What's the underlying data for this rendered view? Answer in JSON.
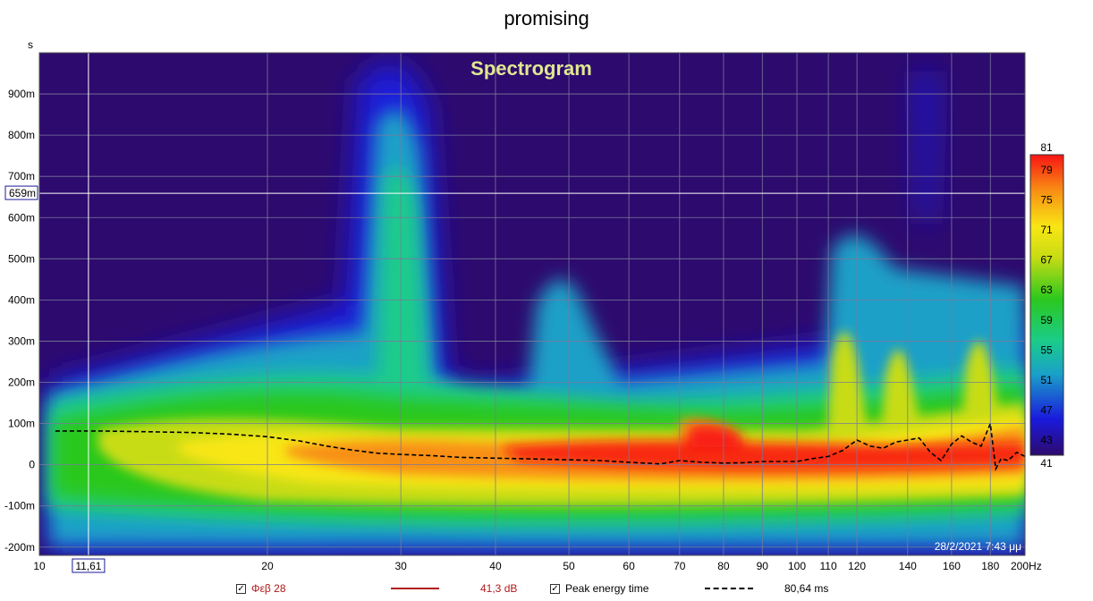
{
  "page_title": "promising",
  "chart_data": {
    "type": "heatmap",
    "title": "Spectrogram",
    "xscale": "log",
    "x_ticks": [
      10,
      20,
      30,
      40,
      50,
      60,
      70,
      80,
      90,
      100,
      110,
      120,
      140,
      160,
      180,
      200
    ],
    "x_tick_labels": [
      "10",
      "20",
      "30",
      "40",
      "50",
      "60",
      "70",
      "80",
      "90",
      "100",
      "110",
      "120",
      "140",
      "160",
      "180",
      "200Hz"
    ],
    "xlim": [
      10,
      200
    ],
    "y_unit": "s",
    "y_ticks": [
      -0.2,
      -0.1,
      0,
      0.1,
      0.2,
      0.3,
      0.4,
      0.5,
      0.6,
      0.7,
      0.8,
      0.9
    ],
    "y_tick_labels": [
      "-200m",
      "-100m",
      "0",
      "100m",
      "200m",
      "300m",
      "400m",
      "500m",
      "600m",
      "700m",
      "800m",
      "900m"
    ],
    "ylim": [
      -0.22,
      1.0
    ],
    "colorbar": {
      "min": 41,
      "max": 81,
      "ticks": [
        43,
        47,
        51,
        55,
        59,
        63,
        67,
        71,
        75,
        79
      ],
      "colors": [
        "#2d0a6e",
        "#1a1adc",
        "#1aa0c8",
        "#1acc8a",
        "#2cc81e",
        "#c8dc14",
        "#f8e614",
        "#f89014",
        "#f81414"
      ]
    },
    "cursor": {
      "x": 11.61,
      "x_label": "11,61",
      "y": 0.659,
      "y_label": "659m"
    },
    "timestamp": "28/2/2021 7:43 μμ",
    "peak_energy_time": {
      "name": "Peak energy time",
      "x": [
        10.5,
        12,
        14,
        16,
        18,
        20,
        22,
        24,
        26,
        28,
        30,
        33,
        36,
        40,
        45,
        50,
        55,
        60,
        63,
        66,
        70,
        75,
        80,
        85,
        90,
        95,
        100,
        105,
        110,
        115,
        120,
        125,
        130,
        135,
        140,
        145,
        150,
        155,
        160,
        165,
        170,
        175,
        180,
        183,
        186,
        190,
        195,
        200
      ],
      "y": [
        0.082,
        0.082,
        0.08,
        0.078,
        0.074,
        0.068,
        0.058,
        0.045,
        0.035,
        0.028,
        0.025,
        0.022,
        0.018,
        0.016,
        0.014,
        0.012,
        0.01,
        0.006,
        0.004,
        0.002,
        0.01,
        0.006,
        0.004,
        0.005,
        0.008,
        0.008,
        0.008,
        0.015,
        0.02,
        0.035,
        0.06,
        0.045,
        0.04,
        0.055,
        0.06,
        0.065,
        0.03,
        0.01,
        0.05,
        0.07,
        0.055,
        0.045,
        0.1,
        -0.01,
        0.015,
        0.01,
        0.03,
        0.02
      ]
    }
  },
  "legend": {
    "item1": {
      "label": "Φεβ 28",
      "value": "41,3 dB",
      "color": "#b01818",
      "checked": "✓"
    },
    "item2": {
      "label": "Peak energy time",
      "value": "80,64 ms",
      "color": "#000000",
      "checked": "✓"
    }
  }
}
